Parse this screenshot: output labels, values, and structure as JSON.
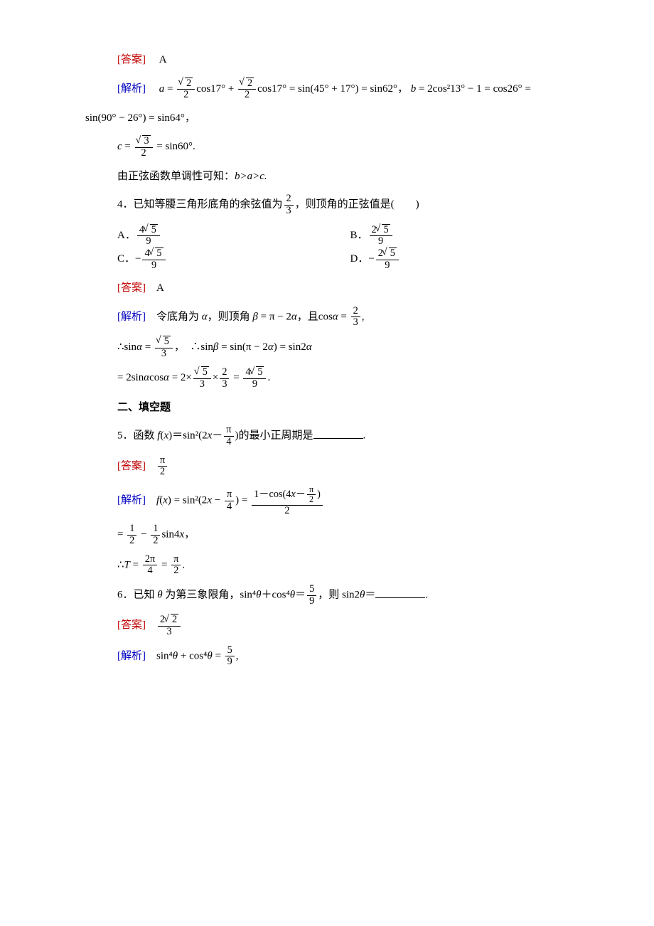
{
  "q3answer": {
    "label": "[答案]",
    "value": "A"
  },
  "q3analysis": {
    "label": "[解析]",
    "line1_a": "a",
    "line1_eq1": " = ",
    "frac_s2_2_a": {
      "num": "2",
      "den": "2"
    },
    "line1_cos17a": "cos17° + ",
    "frac_s2_2_b": {
      "num": "2",
      "den": "2"
    },
    "line1_rest": "cos17° = sin(45° + 17°) = sin62°，",
    "line1_b": "b",
    "line1_beq": " = 2cos²13° − 1 = cos26° =",
    "line2": "sin(90° − 26°) = sin64°，",
    "line3_c": "c",
    "line3_eq": " = ",
    "frac_s3_2": {
      "num": "3",
      "den": "2"
    },
    "line3_rest": " = sin60°.",
    "line4": "由正弦函数单调性可知：",
    "line4_rel": "b>a>c."
  },
  "q4": {
    "stem_pre": "4．已知等腰三角形底角的余弦值为",
    "frac23": {
      "num": "2",
      "den": "3"
    },
    "stem_post": "，则顶角的正弦值是(　　)",
    "optA_pre": "A．",
    "optA": {
      "num": "5",
      "coef": "4",
      "den": "9"
    },
    "optB_pre": "B．",
    "optB": {
      "num": "5",
      "coef": "2",
      "den": "9"
    },
    "optC_pre": "C．−",
    "optC": {
      "num": "5",
      "coef": "4",
      "den": "9"
    },
    "optD_pre": "D．−",
    "optD": {
      "num": "5",
      "coef": "2",
      "den": "9"
    },
    "answer": {
      "label": "[答案]",
      "value": "A"
    },
    "analysis": {
      "label": "[解析]",
      "l1_a": "令底角为 ",
      "l1_alpha": "α",
      "l1_b": "，则顶角 ",
      "l1_beta": "β",
      "l1_c": " = π − 2",
      "l1_alpha2": "α",
      "l1_d": "，且cos",
      "l1_alpha3": "α",
      "l1_e": " = ",
      "l1_comma": ",",
      "l2_a": "∴sin",
      "l2_alpha": "α",
      "l2_b": " = ",
      "frac_s5_3": {
        "num": "5",
        "den": "3"
      },
      "l2_c": "，　∴sin",
      "l2_beta": "β",
      "l2_d": " = sin(π − 2",
      "l2_alpha2": "α",
      "l2_e": ") = sin2",
      "l2_alpha3": "α",
      "l3_a": " = 2sin",
      "l3_alpha": "α",
      "l3_b": "cos",
      "l3_alpha2": "α",
      "l3_c": " = 2×",
      "l3_d": "×",
      "frac23b": {
        "num": "2",
        "den": "3"
      },
      "l3_e": " = ",
      "frac_4s5_9": {
        "coef": "4",
        "num": "5",
        "den": "9"
      },
      "l3_f": "."
    }
  },
  "sec2": "二、填空题",
  "q5": {
    "stem_a": "5．函数 ",
    "stem_fx": "f",
    "stem_paren": "(",
    "stem_x": "x",
    "stem_b": ")＝sin²(2",
    "stem_x2": "x",
    "stem_c": "－",
    "frac_pi4": {
      "num": "π",
      "den": "4"
    },
    "stem_d": ")的最小正周期是",
    "stem_e": ".",
    "answer": {
      "label": "[答案]",
      "value_num": "π",
      "value_den": "2"
    },
    "analysis": {
      "label": "[解析]",
      "l1_f": "f",
      "l1_po": "(",
      "l1_x": "x",
      "l1_a": ") = sin²(2",
      "l1_x2": "x",
      "l1_b": " − ",
      "l1_c": ") = ",
      "bigfrac": {
        "num_a": "1－cos(4",
        "num_x": "x",
        "num_b": "－",
        "num_pi2_n": "π",
        "num_pi2_d": "2",
        "num_c": ")",
        "den": "2"
      },
      "l2_a": " = ",
      "frac12a": {
        "num": "1",
        "den": "2"
      },
      "l2_b": " − ",
      "frac12b": {
        "num": "1",
        "den": "2"
      },
      "l2_c": "sin4",
      "l2_x": "x",
      "l2_d": "，",
      "l3_a": "∴",
      "l3_T": "T",
      "l3_b": " = ",
      "frac_2pi4": {
        "num": "2π",
        "den": "4"
      },
      "l3_c": " = ",
      "frac_pi2": {
        "num": "π",
        "den": "2"
      },
      "l3_d": "."
    }
  },
  "q6": {
    "stem_a": "6．已知 ",
    "stem_th": "θ",
    "stem_b": " 为第三象限角，sin⁴",
    "stem_th2": "θ",
    "stem_c": "＋cos⁴",
    "stem_th3": "θ",
    "stem_d": "＝",
    "frac59": {
      "num": "5",
      "den": "9"
    },
    "stem_e": "，则 sin2",
    "stem_th4": "θ",
    "stem_f": "＝",
    "stem_g": ".",
    "answer": {
      "label": "[答案]",
      "coef": "2",
      "num": "2",
      "den": "3"
    },
    "analysis": {
      "label": "[解析]",
      "l1_a": "sin⁴",
      "l1_th": "θ",
      "l1_b": " + cos⁴",
      "l1_th2": "θ",
      "l1_c": " = ",
      "l1_d": ","
    }
  }
}
